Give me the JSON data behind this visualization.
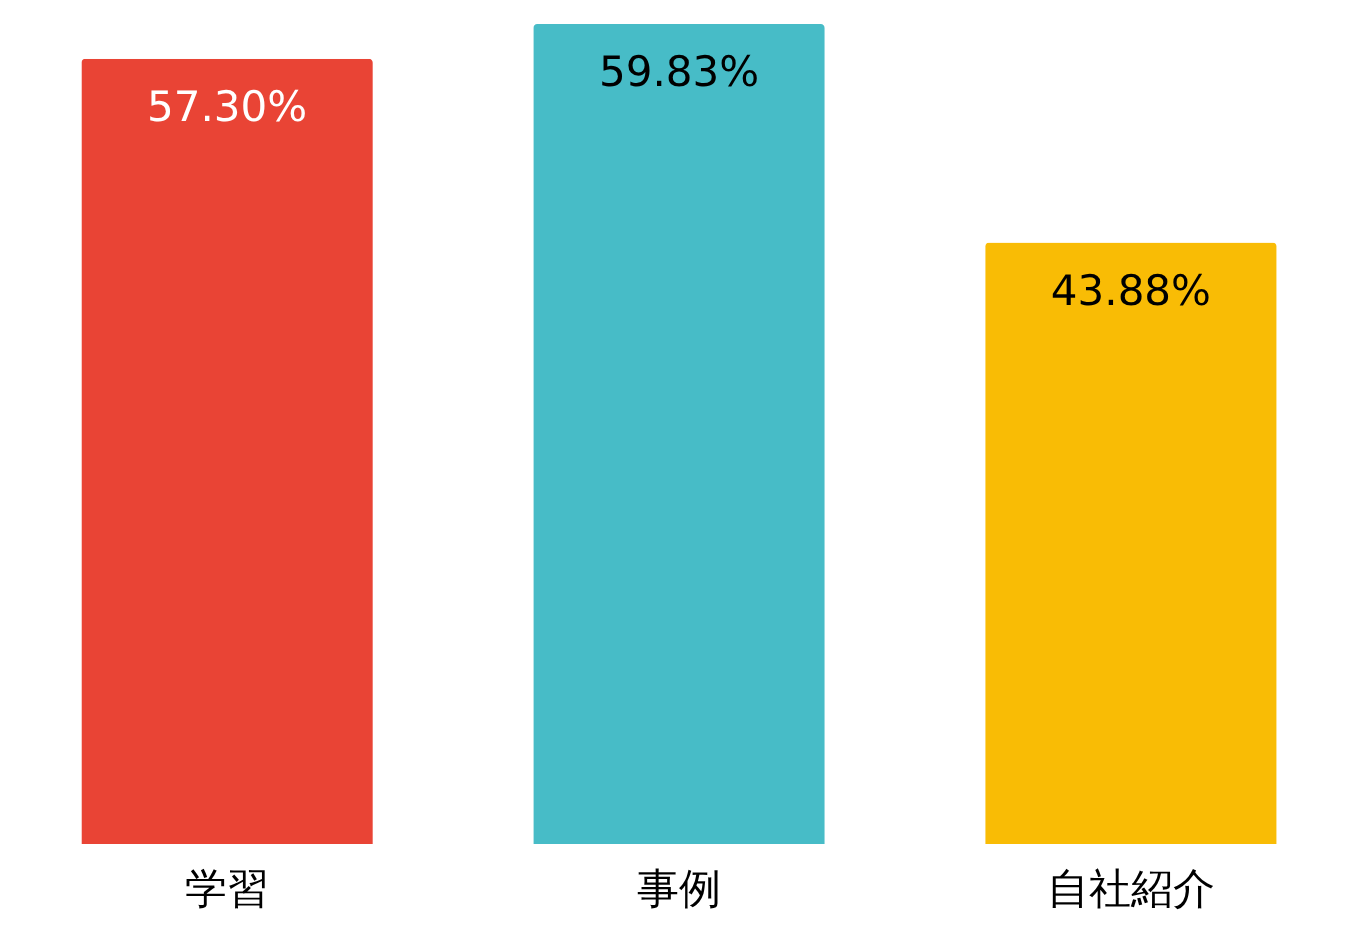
{
  "chart_data": {
    "type": "bar",
    "categories": [
      "学習",
      "事例",
      "自社紹介"
    ],
    "values": [
      57.3,
      59.83,
      43.88
    ],
    "colors": [
      "#e94435",
      "#47bcc7",
      "#f9bc05"
    ],
    "value_labels": [
      "57.30%",
      "59.83%",
      "43.88%"
    ]
  }
}
